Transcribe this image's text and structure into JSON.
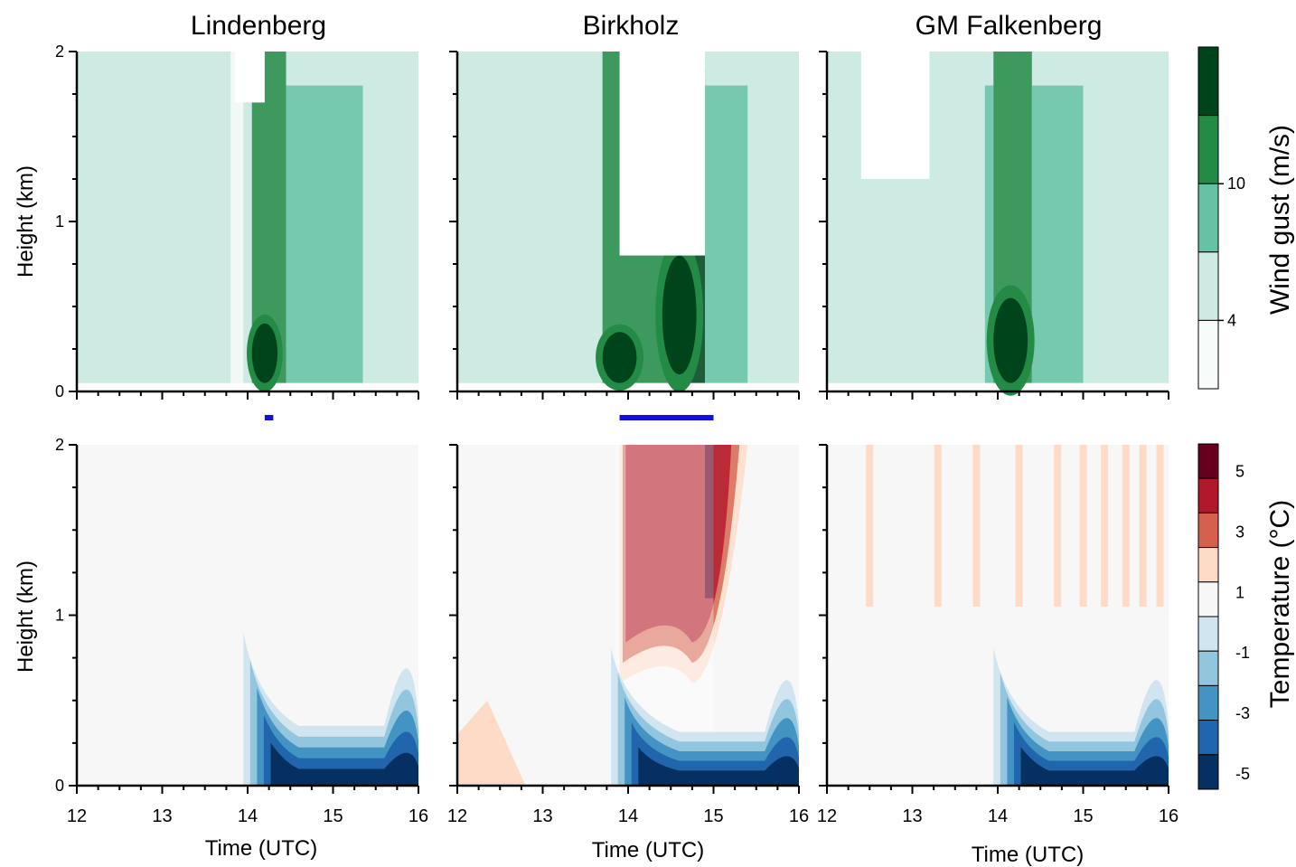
{
  "panels": {
    "titles": [
      "Lindenberg",
      "Birkholz",
      "GM Falkenberg"
    ]
  },
  "axes": {
    "x_label": "Time (UTC)",
    "y_label": "Height (km)",
    "x_ticks": [
      "12",
      "13",
      "14",
      "15",
      "16"
    ],
    "y_ticks": [
      "0",
      "1",
      "2"
    ]
  },
  "colorbars": {
    "wind": {
      "label": "Wind gust (m/s)",
      "tick_labels": [
        "4",
        "10"
      ],
      "colors": [
        "#f7fcfa",
        "#cdebe3",
        "#66c2a4",
        "#238b45",
        "#00441b"
      ]
    },
    "temperature": {
      "label": "Temperature (°C)",
      "tick_labels": [
        "5",
        "3",
        "1",
        "-1",
        "-3",
        "-5"
      ],
      "colors": [
        "#67001f",
        "#b2182b",
        "#d6604d",
        "#fddbc7",
        "#f7f7f7",
        "#d1e5f0",
        "#92c5de",
        "#4393c3",
        "#2166ac",
        "#053061"
      ]
    }
  },
  "chart_data": [
    {
      "type": "heatmap",
      "title": "Lindenberg",
      "variable": "Wind gust (m/s)",
      "xlabel": "",
      "ylabel": "Height (km)",
      "xlim": [
        12,
        16
      ],
      "ylim": [
        0,
        2
      ],
      "bands": [
        {
          "start": 12.0,
          "end": 13.8,
          "level": 1
        },
        {
          "start": 13.8,
          "end": 13.95,
          "level": 0
        },
        {
          "start": 13.95,
          "end": 14.05,
          "level": 1
        },
        {
          "start": 14.05,
          "end": 14.45,
          "level": 3
        },
        {
          "start": 14.45,
          "end": 15.0,
          "level": 2
        },
        {
          "start": 15.0,
          "end": 15.35,
          "level": 2
        },
        {
          "start": 15.35,
          "end": 16.0,
          "level": 1
        }
      ],
      "cores": [
        {
          "t0": 14.05,
          "t1": 14.35,
          "z0": 0.05,
          "z1": 0.4,
          "level": 4
        }
      ],
      "gust_marker": {
        "start": 14.2,
        "end": 14.3
      }
    },
    {
      "type": "heatmap",
      "title": "Birkholz",
      "variable": "Wind gust (m/s)",
      "xlabel": "",
      "ylabel": "Height (km)",
      "xlim": [
        12,
        16
      ],
      "ylim": [
        0,
        2
      ],
      "bands": [
        {
          "start": 12.0,
          "end": 13.0,
          "level": 1
        },
        {
          "start": 13.0,
          "end": 13.7,
          "level": 1
        },
        {
          "start": 13.7,
          "end": 14.0,
          "level": 3
        },
        {
          "start": 14.0,
          "end": 14.5,
          "level": 3
        },
        {
          "start": 14.5,
          "end": 14.9,
          "level": 4
        },
        {
          "start": 14.9,
          "end": 15.4,
          "level": 2
        },
        {
          "start": 15.4,
          "end": 16.0,
          "level": 1
        }
      ],
      "cores": [
        {
          "t0": 13.7,
          "t1": 14.1,
          "z0": 0.05,
          "z1": 0.35,
          "level": 4
        },
        {
          "t0": 14.4,
          "t1": 14.8,
          "z0": 0.1,
          "z1": 0.8,
          "level": 4
        }
      ],
      "gust_marker": {
        "start": 13.9,
        "end": 15.0
      }
    },
    {
      "type": "heatmap",
      "title": "GM Falkenberg",
      "variable": "Wind gust (m/s)",
      "xlabel": "",
      "ylabel": "Height (km)",
      "xlim": [
        12,
        16
      ],
      "ylim": [
        0,
        2
      ],
      "bands": [
        {
          "start": 12.0,
          "end": 13.6,
          "level": 1
        },
        {
          "start": 13.6,
          "end": 13.85,
          "level": 1
        },
        {
          "start": 13.85,
          "end": 13.95,
          "level": 2
        },
        {
          "start": 13.95,
          "end": 14.4,
          "level": 3
        },
        {
          "start": 14.4,
          "end": 15.0,
          "level": 2
        },
        {
          "start": 15.0,
          "end": 15.6,
          "level": 1
        },
        {
          "start": 15.6,
          "end": 16.0,
          "level": 1
        }
      ],
      "cores": [
        {
          "t0": 13.95,
          "t1": 14.35,
          "z0": 0.05,
          "z1": 0.55,
          "level": 4
        }
      ]
    },
    {
      "type": "heatmap",
      "title": "",
      "variable": "Temperature (°C)",
      "xlabel": "Time (UTC)",
      "ylabel": "Height (km)",
      "xlim": [
        12,
        16
      ],
      "ylim": [
        0,
        2
      ],
      "cold_pools": [
        {
          "t0": 13.95,
          "t1": 16.0,
          "top_km": 1.0,
          "minimum": -5
        }
      ]
    },
    {
      "type": "heatmap",
      "title": "",
      "variable": "Temperature (°C)",
      "xlabel": "Time (UTC)",
      "ylabel": "Height (km)",
      "xlim": [
        12,
        16
      ],
      "ylim": [
        0,
        2
      ],
      "warm_region": {
        "t0": 13.9,
        "t1": 15.4,
        "z0": 0.6,
        "z1": 2.0,
        "maximum": 5
      },
      "cold_pools": [
        {
          "t0": 13.8,
          "t1": 16.0,
          "top_km": 0.9,
          "minimum": -5
        }
      ],
      "near_surface_warm": {
        "t0": 12.0,
        "t1": 12.8,
        "top_km": 0.5,
        "level": 1
      }
    },
    {
      "type": "heatmap",
      "title": "",
      "variable": "Temperature (°C)",
      "xlabel": "Time (UTC)",
      "ylabel": "Height (km)",
      "xlim": [
        12,
        16
      ],
      "ylim": [
        0,
        2
      ],
      "warm_streaks": [
        12.5,
        13.3,
        13.75,
        14.25,
        14.7,
        15.0,
        15.25,
        15.5,
        15.7,
        15.9
      ],
      "cold_pools": [
        {
          "t0": 13.95,
          "t1": 16.0,
          "top_km": 0.9,
          "minimum": -5
        }
      ]
    }
  ]
}
